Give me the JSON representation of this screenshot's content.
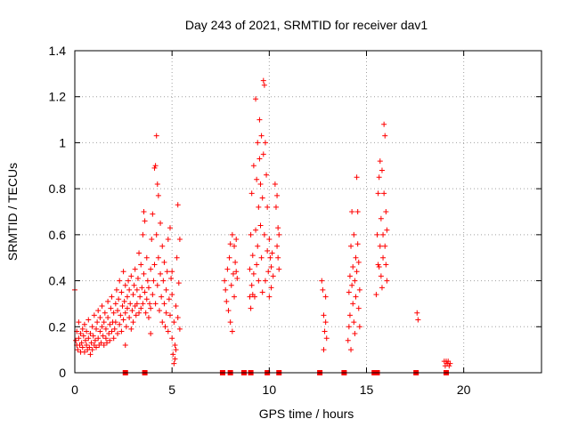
{
  "chart_data": {
    "type": "scatter",
    "title": "Day 243 of 2021, SRMTID for receiver dav1",
    "xlabel": "GPS time / hours",
    "ylabel": "SRMTID / TECUs",
    "xlim": [
      0,
      24
    ],
    "ylim": [
      0,
      1.4
    ],
    "xticks": [
      0,
      5,
      10,
      15,
      20
    ],
    "yticks": [
      0,
      0.2,
      0.4,
      0.6,
      0.8,
      1,
      1.2,
      1.4
    ],
    "ytick_labels": [
      "0",
      "0.2",
      "0.4",
      "0.6",
      "0.8",
      "1",
      "1.2",
      "1.4"
    ],
    "grid": true,
    "marker": "plus",
    "color": "#ff0000",
    "series": [
      {
        "name": "dav1",
        "points": [
          [
            0.0,
            0.36
          ],
          [
            0.05,
            0.14
          ],
          [
            0.1,
            0.12
          ],
          [
            0.1,
            0.18
          ],
          [
            0.15,
            0.1
          ],
          [
            0.2,
            0.15
          ],
          [
            0.2,
            0.22
          ],
          [
            0.25,
            0.12
          ],
          [
            0.3,
            0.17
          ],
          [
            0.3,
            0.09
          ],
          [
            0.35,
            0.13
          ],
          [
            0.4,
            0.19
          ],
          [
            0.4,
            0.11
          ],
          [
            0.45,
            0.16
          ],
          [
            0.5,
            0.09
          ],
          [
            0.5,
            0.21
          ],
          [
            0.55,
            0.14
          ],
          [
            0.6,
            0.12
          ],
          [
            0.6,
            0.18
          ],
          [
            0.65,
            0.1
          ],
          [
            0.7,
            0.15
          ],
          [
            0.7,
            0.23
          ],
          [
            0.75,
            0.11
          ],
          [
            0.8,
            0.17
          ],
          [
            0.8,
            0.08
          ],
          [
            0.85,
            0.13
          ],
          [
            0.9,
            0.2
          ],
          [
            0.9,
            0.1
          ],
          [
            0.95,
            0.16
          ],
          [
            1.0,
            0.12
          ],
          [
            1.0,
            0.25
          ],
          [
            1.05,
            0.14
          ],
          [
            1.1,
            0.19
          ],
          [
            1.1,
            0.11
          ],
          [
            1.15,
            0.22
          ],
          [
            1.2,
            0.15
          ],
          [
            1.2,
            0.27
          ],
          [
            1.25,
            0.12
          ],
          [
            1.3,
            0.18
          ],
          [
            1.3,
            0.24
          ],
          [
            1.35,
            0.13
          ],
          [
            1.4,
            0.2
          ],
          [
            1.4,
            0.29
          ],
          [
            1.45,
            0.16
          ],
          [
            1.5,
            0.22
          ],
          [
            1.5,
            0.12
          ],
          [
            1.55,
            0.26
          ],
          [
            1.6,
            0.15
          ],
          [
            1.6,
            0.19
          ],
          [
            1.65,
            0.13
          ],
          [
            1.7,
            0.24
          ],
          [
            1.7,
            0.31
          ],
          [
            1.75,
            0.17
          ],
          [
            1.8,
            0.21
          ],
          [
            1.8,
            0.14
          ],
          [
            1.85,
            0.28
          ],
          [
            1.9,
            0.18
          ],
          [
            1.9,
            0.33
          ],
          [
            1.95,
            0.22
          ],
          [
            2.0,
            0.15
          ],
          [
            2.0,
            0.26
          ],
          [
            2.05,
            0.19
          ],
          [
            2.1,
            0.3
          ],
          [
            2.1,
            0.22
          ],
          [
            2.15,
            0.36
          ],
          [
            2.2,
            0.17
          ],
          [
            2.2,
            0.27
          ],
          [
            2.25,
            0.32
          ],
          [
            2.3,
            0.21
          ],
          [
            2.3,
            0.4
          ],
          [
            2.35,
            0.25
          ],
          [
            2.4,
            0.18
          ],
          [
            2.4,
            0.35
          ],
          [
            2.45,
            0.29
          ],
          [
            2.5,
            0.23
          ],
          [
            2.5,
            0.44
          ],
          [
            2.55,
            0.31
          ],
          [
            2.6,
            0.26
          ],
          [
            2.6,
            0.38
          ],
          [
            2.65,
            0.2
          ],
          [
            2.7,
            0.33
          ],
          [
            2.7,
            0.28
          ],
          [
            2.75,
            0.4
          ],
          [
            2.8,
            0.24
          ],
          [
            2.8,
            0.36
          ],
          [
            2.85,
            0.3
          ],
          [
            2.9,
            0.19
          ],
          [
            2.9,
            0.42
          ],
          [
            2.95,
            0.27
          ],
          [
            3.0,
            0.34
          ],
          [
            3.0,
            0.22
          ],
          [
            3.05,
            0.38
          ],
          [
            3.1,
            0.29
          ],
          [
            3.1,
            0.45
          ],
          [
            3.15,
            0.25
          ],
          [
            3.2,
            0.36
          ],
          [
            3.2,
            0.3
          ],
          [
            3.25,
            0.41
          ],
          [
            3.3,
            0.26
          ],
          [
            3.3,
            0.52
          ],
          [
            3.35,
            0.33
          ],
          [
            3.4,
            0.28
          ],
          [
            3.4,
            0.47
          ],
          [
            3.45,
            0.37
          ],
          [
            3.5,
            0.6
          ],
          [
            3.5,
            0.3
          ],
          [
            3.55,
            0.43
          ],
          [
            3.6,
            0.66
          ],
          [
            3.6,
            0.35
          ],
          [
            3.65,
            0.26
          ],
          [
            3.7,
            0.5
          ],
          [
            3.7,
            0.32
          ],
          [
            3.75,
            0.4
          ],
          [
            3.8,
            0.24
          ],
          [
            3.8,
            0.37
          ],
          [
            3.85,
            0.3
          ],
          [
            3.9,
            0.45
          ],
          [
            3.9,
            0.28
          ],
          [
            3.95,
            0.58
          ],
          [
            4.0,
            0.34
          ],
          [
            4.0,
            0.69
          ],
          [
            4.05,
            0.4
          ],
          [
            4.1,
            0.89
          ],
          [
            4.1,
            0.47
          ],
          [
            4.15,
            0.3
          ],
          [
            4.2,
            1.03
          ],
          [
            4.2,
            0.6
          ],
          [
            4.25,
            0.38
          ],
          [
            4.3,
            0.77
          ],
          [
            4.3,
            0.5
          ],
          [
            4.35,
            0.27
          ],
          [
            4.4,
            0.43
          ],
          [
            4.4,
            0.65
          ],
          [
            4.45,
            0.33
          ],
          [
            4.5,
            0.55
          ],
          [
            4.5,
            0.22
          ],
          [
            4.55,
            0.4
          ],
          [
            4.6,
            0.3
          ],
          [
            4.6,
            0.48
          ],
          [
            4.65,
            0.2
          ],
          [
            4.7,
            0.36
          ],
          [
            4.7,
            0.26
          ],
          [
            4.75,
            0.44
          ],
          [
            4.8,
            0.18
          ],
          [
            4.8,
            0.58
          ],
          [
            4.85,
            0.32
          ],
          [
            4.9,
            0.63
          ],
          [
            4.9,
            0.25
          ],
          [
            4.95,
            0.41
          ],
          [
            5.0,
            0.15
          ],
          [
            5.0,
            0.34
          ],
          [
            5.05,
            0.08
          ],
          [
            5.1,
            0.22
          ],
          [
            5.1,
            0.04
          ],
          [
            5.15,
            0.12
          ],
          [
            5.2,
            0.29
          ],
          [
            5.2,
            0.1
          ],
          [
            5.25,
            0.5
          ],
          [
            5.3,
            0.73
          ],
          [
            5.3,
            0.24
          ],
          [
            5.35,
            0.39
          ],
          [
            5.4,
            0.58
          ],
          [
            5.4,
            0.19
          ],
          [
            4.15,
            0.9
          ],
          [
            3.55,
            0.7
          ],
          [
            4.25,
            0.82
          ],
          [
            5.15,
            0.06
          ],
          [
            5.0,
            0.44
          ],
          [
            3.9,
            0.17
          ],
          [
            2.6,
            0.12
          ],
          [
            7.7,
            0.4
          ],
          [
            7.75,
            0.36
          ],
          [
            7.8,
            0.31
          ],
          [
            7.85,
            0.45
          ],
          [
            7.9,
            0.27
          ],
          [
            7.95,
            0.5
          ],
          [
            8.0,
            0.22
          ],
          [
            8.0,
            0.56
          ],
          [
            8.05,
            0.38
          ],
          [
            8.1,
            0.18
          ],
          [
            8.1,
            0.6
          ],
          [
            8.15,
            0.43
          ],
          [
            8.2,
            0.33
          ],
          [
            8.2,
            0.55
          ],
          [
            8.25,
            0.48
          ],
          [
            8.3,
            0.44
          ],
          [
            8.3,
            0.58
          ],
          [
            8.35,
            0.41
          ],
          [
            9.0,
            0.33
          ],
          [
            9.0,
            0.45
          ],
          [
            9.05,
            0.28
          ],
          [
            9.05,
            0.6
          ],
          [
            9.1,
            0.38
          ],
          [
            9.1,
            0.78
          ],
          [
            9.15,
            0.34
          ],
          [
            9.15,
            0.51
          ],
          [
            9.2,
            0.9
          ],
          [
            9.2,
            0.43
          ],
          [
            9.25,
            0.33
          ],
          [
            9.3,
            1.19
          ],
          [
            9.3,
            0.62
          ],
          [
            9.35,
            0.47
          ],
          [
            9.35,
            0.84
          ],
          [
            9.4,
            1.0
          ],
          [
            9.4,
            0.55
          ],
          [
            9.45,
            0.72
          ],
          [
            9.45,
            0.4
          ],
          [
            9.5,
            1.1
          ],
          [
            9.5,
            0.93
          ],
          [
            9.55,
            0.64
          ],
          [
            9.55,
            0.82
          ],
          [
            9.6,
            1.03
          ],
          [
            9.6,
            0.5
          ],
          [
            9.65,
            0.76
          ],
          [
            9.65,
            0.35
          ],
          [
            9.7,
            1.27
          ],
          [
            9.7,
            0.95
          ],
          [
            9.75,
            1.25
          ],
          [
            9.75,
            0.6
          ],
          [
            9.8,
            1.0
          ],
          [
            9.8,
            0.4
          ],
          [
            9.85,
            0.86
          ],
          [
            9.9,
            0.53
          ],
          [
            9.9,
            0.72
          ],
          [
            9.95,
            0.44
          ],
          [
            10.0,
            0.58
          ],
          [
            10.0,
            0.33
          ],
          [
            10.05,
            0.5
          ],
          [
            10.1,
            0.46
          ],
          [
            10.1,
            0.37
          ],
          [
            10.15,
            0.52
          ],
          [
            10.2,
            0.42
          ],
          [
            10.3,
            0.82
          ],
          [
            10.35,
            0.72
          ],
          [
            10.4,
            0.77
          ],
          [
            10.4,
            0.55
          ],
          [
            10.45,
            0.63
          ],
          [
            10.45,
            0.5
          ],
          [
            10.5,
            0.6
          ],
          [
            10.5,
            0.45
          ],
          [
            12.7,
            0.4
          ],
          [
            12.75,
            0.36
          ],
          [
            12.8,
            0.25
          ],
          [
            12.8,
            0.1
          ],
          [
            12.85,
            0.18
          ],
          [
            12.9,
            0.22
          ],
          [
            12.9,
            0.33
          ],
          [
            12.95,
            0.15
          ],
          [
            14.05,
            0.14
          ],
          [
            14.1,
            0.2
          ],
          [
            14.1,
            0.35
          ],
          [
            14.15,
            0.25
          ],
          [
            14.15,
            0.42
          ],
          [
            14.2,
            0.1
          ],
          [
            14.2,
            0.55
          ],
          [
            14.25,
            0.38
          ],
          [
            14.25,
            0.7
          ],
          [
            14.3,
            0.3
          ],
          [
            14.3,
            0.46
          ],
          [
            14.35,
            0.22
          ],
          [
            14.35,
            0.6
          ],
          [
            14.4,
            0.4
          ],
          [
            14.4,
            0.17
          ],
          [
            14.45,
            0.5
          ],
          [
            14.45,
            0.33
          ],
          [
            14.5,
            0.85
          ],
          [
            14.5,
            0.44
          ],
          [
            14.55,
            0.7
          ],
          [
            14.55,
            0.56
          ],
          [
            14.6,
            0.28
          ],
          [
            14.6,
            0.48
          ],
          [
            14.65,
            0.36
          ],
          [
            14.65,
            0.2
          ],
          [
            15.5,
            0.34
          ],
          [
            15.55,
            0.6
          ],
          [
            15.6,
            0.78
          ],
          [
            15.6,
            0.47
          ],
          [
            15.65,
            0.85
          ],
          [
            15.7,
            0.92
          ],
          [
            15.7,
            0.55
          ],
          [
            15.75,
            0.67
          ],
          [
            15.75,
            0.42
          ],
          [
            15.8,
            0.88
          ],
          [
            15.8,
            0.37
          ],
          [
            15.85,
            0.6
          ],
          [
            15.85,
            0.5
          ],
          [
            15.9,
            1.08
          ],
          [
            15.9,
            0.78
          ],
          [
            15.95,
            1.03
          ],
          [
            15.95,
            0.55
          ],
          [
            16.0,
            0.7
          ],
          [
            16.0,
            0.47
          ],
          [
            16.05,
            0.62
          ],
          [
            16.05,
            0.4
          ],
          [
            15.65,
            0.46
          ],
          [
            17.6,
            0.26
          ],
          [
            17.65,
            0.23
          ],
          [
            19.0,
            0.05
          ],
          [
            19.05,
            0.03
          ],
          [
            19.1,
            0.05
          ],
          [
            19.15,
            0.04
          ],
          [
            19.2,
            0.05
          ],
          [
            19.25,
            0.03
          ],
          [
            19.3,
            0.04
          ]
        ]
      }
    ],
    "zero_band_x": [
      2.6,
      3.6,
      7.6,
      8.0,
      8.7,
      9.05,
      9.9,
      10.5,
      12.6,
      13.85,
      15.4,
      15.55,
      17.55,
      19.1
    ]
  }
}
